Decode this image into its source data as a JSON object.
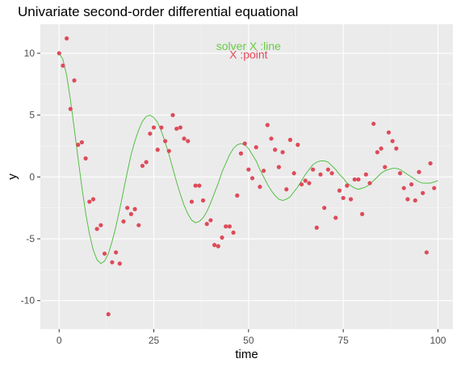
{
  "chart_data": {
    "type": "scatter",
    "title": "Univariate second-order differential equational",
    "xlabel": "time",
    "ylabel": "y",
    "xlim": [
      -4.95,
      103.95
    ],
    "ylim": [
      -12.3,
      12.35
    ],
    "xticks": [
      0,
      25,
      50,
      75,
      100
    ],
    "yticks": [
      -10,
      -5,
      0,
      5,
      10
    ],
    "grid": true,
    "background": "#ebebeb",
    "annotations": [
      {
        "text": "solver  X :line",
        "color": "#66cc44",
        "x": 50,
        "y": 10.6
      },
      {
        "text": "X :point",
        "color": "#e8495b",
        "x": 50,
        "y": 9.9
      }
    ],
    "series": [
      {
        "type": "line",
        "color": "#44bb33",
        "x": [
          0,
          1,
          2,
          3,
          4,
          5,
          6,
          7,
          8,
          9,
          10,
          11,
          12,
          13,
          14,
          15,
          16,
          17,
          18,
          19,
          20,
          21,
          22,
          23,
          24,
          25,
          26,
          27,
          28,
          29,
          30,
          31,
          32,
          33,
          34,
          35,
          36,
          37,
          38,
          39,
          40,
          41,
          42,
          43,
          44,
          45,
          46,
          47,
          48,
          49,
          50,
          51,
          52,
          53,
          54,
          55,
          56,
          57,
          58,
          59,
          60,
          61,
          62,
          63,
          64,
          65,
          66,
          67,
          68,
          69,
          70,
          71,
          72,
          73,
          74,
          75,
          76,
          77,
          78,
          79,
          80,
          81,
          82,
          83,
          84,
          85,
          86,
          87,
          88,
          89,
          90,
          91,
          92,
          93,
          94,
          95,
          96,
          97,
          98,
          99,
          100
        ],
        "y": [
          10.0,
          9.5,
          8.2,
          6.2,
          3.9,
          1.5,
          -0.8,
          -2.9,
          -4.6,
          -5.9,
          -6.7,
          -7.0,
          -6.8,
          -6.2,
          -5.2,
          -4.0,
          -2.6,
          -1.1,
          0.4,
          1.8,
          2.9,
          3.8,
          4.5,
          4.9,
          5.0,
          4.8,
          4.4,
          3.7,
          2.8,
          1.8,
          0.7,
          -0.4,
          -1.4,
          -2.3,
          -3.0,
          -3.5,
          -3.7,
          -3.6,
          -3.3,
          -2.8,
          -2.1,
          -1.3,
          -0.5,
          0.4,
          1.1,
          1.8,
          2.3,
          2.6,
          2.7,
          2.6,
          2.3,
          1.8,
          1.3,
          0.6,
          0.0,
          -0.6,
          -1.1,
          -1.5,
          -1.8,
          -1.9,
          -1.8,
          -1.6,
          -1.2,
          -0.8,
          -0.3,
          0.2,
          0.6,
          1.0,
          1.2,
          1.3,
          1.3,
          1.2,
          0.9,
          0.6,
          0.2,
          -0.1,
          -0.5,
          -0.7,
          -0.9,
          -1.0,
          -0.9,
          -0.8,
          -0.6,
          -0.3,
          0.0,
          0.3,
          0.5,
          0.6,
          0.7,
          0.7,
          0.6,
          0.4,
          0.2,
          0.0,
          -0.2,
          -0.4,
          -0.5,
          -0.5,
          -0.5,
          -0.4,
          -0.3
        ]
      },
      {
        "type": "point",
        "color": "#dd4b5a",
        "x": [
          0,
          1,
          2,
          3,
          4,
          5,
          6,
          7,
          8,
          9,
          10,
          11,
          12,
          13,
          14,
          15,
          16,
          17,
          18,
          19,
          20,
          21,
          22,
          23,
          24,
          25,
          26,
          27,
          28,
          29,
          30,
          31,
          32,
          33,
          34,
          35,
          36,
          37,
          38,
          39,
          40,
          41,
          42,
          43,
          44,
          45,
          46,
          47,
          48,
          49,
          50,
          51,
          52,
          53,
          54,
          55,
          56,
          57,
          58,
          59,
          60,
          61,
          62,
          63,
          64,
          65,
          66,
          67,
          68,
          69,
          70,
          71,
          72,
          73,
          74,
          75,
          76,
          77,
          78,
          79,
          80,
          81,
          82,
          83,
          84,
          85,
          86,
          87,
          88,
          89,
          90,
          91,
          92,
          93,
          94,
          95,
          96,
          97,
          98,
          99
        ],
        "y": [
          10.0,
          9.0,
          11.2,
          5.5,
          7.8,
          2.6,
          2.8,
          1.5,
          -2.0,
          -1.8,
          -4.2,
          -3.9,
          -6.2,
          -11.1,
          -6.9,
          -6.1,
          -7.0,
          -3.6,
          -2.5,
          -3.0,
          -2.6,
          -3.9,
          0.9,
          1.2,
          3.5,
          4.0,
          2.2,
          4.0,
          2.9,
          2.1,
          5.0,
          3.9,
          4.0,
          3.1,
          2.9,
          -2.0,
          -0.7,
          -0.7,
          -1.9,
          -3.8,
          -3.5,
          -5.5,
          -5.6,
          -4.9,
          -4.0,
          -4.0,
          -4.5,
          -1.5,
          1.9,
          2.7,
          0.6,
          -0.1,
          2.4,
          -0.8,
          0.5,
          4.2,
          3.1,
          2.2,
          0.8,
          2.0,
          -1.0,
          3.0,
          0.3,
          2.6,
          -0.6,
          -0.3,
          -0.5,
          0.6,
          -4.1,
          0.2,
          -2.5,
          0.6,
          0.3,
          -3.3,
          -1.1,
          -1.7,
          -0.7,
          -1.8,
          -0.2,
          -0.2,
          -3.0,
          0.2,
          -0.5,
          4.3,
          2.0,
          2.3,
          0.8,
          3.6,
          2.9,
          2.3,
          0.3,
          -0.9,
          -1.8,
          -0.6,
          -1.9,
          0.4,
          -1.3,
          -6.1,
          1.1,
          -0.9
        ]
      }
    ]
  }
}
